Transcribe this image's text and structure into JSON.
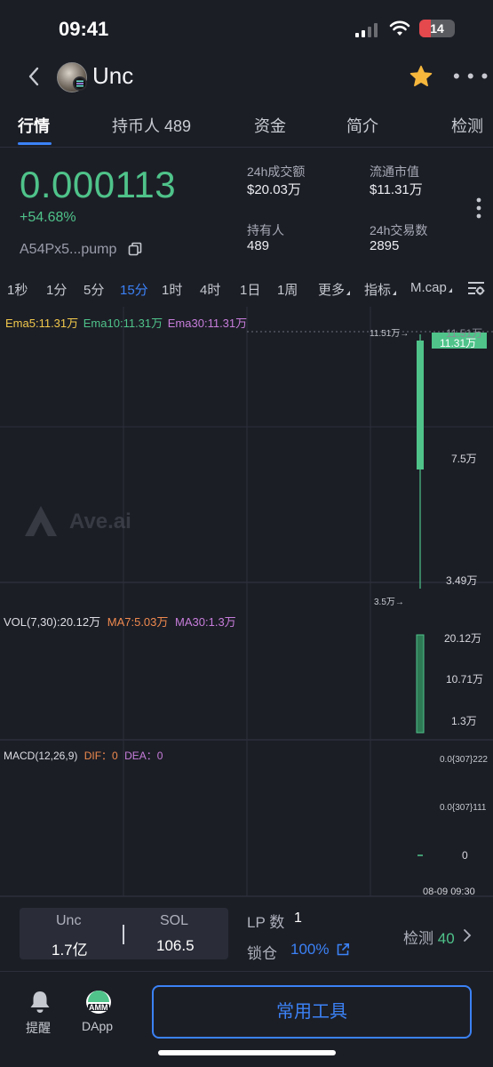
{
  "status_bar": {
    "time": "09:41",
    "battery": "14"
  },
  "header": {
    "title": "Unc"
  },
  "tabs": [
    {
      "label": "行情"
    },
    {
      "label": "持币人 489"
    },
    {
      "label": "资金"
    },
    {
      "label": "简介"
    },
    {
      "label": "检测"
    }
  ],
  "price": {
    "value": "0.000113",
    "change": "+54.68%",
    "address": "A54Px5...pump"
  },
  "stats": [
    {
      "label": "24h成交额",
      "value": "$20.03万"
    },
    {
      "label": "流通市值",
      "value": "$11.31万"
    },
    {
      "label": "持有人",
      "value": "489"
    },
    {
      "label": "24h交易数",
      "value": "2895"
    }
  ],
  "timeframes": [
    {
      "label": "1秒"
    },
    {
      "label": "1分"
    },
    {
      "label": "5分"
    },
    {
      "label": "15分"
    },
    {
      "label": "1时"
    },
    {
      "label": "4时"
    },
    {
      "label": "1日"
    },
    {
      "label": "1周"
    },
    {
      "label": "更多"
    },
    {
      "label": "指标"
    },
    {
      "label": "M.cap"
    }
  ],
  "chart": {
    "ema": {
      "ema5": "Ema5:11.31万",
      "ema10": "Ema10:11.31万",
      "ema30": "Ema30:11.31万"
    },
    "price_axis": {
      "top": "11.51万",
      "current": "11.31万",
      "mid": "7.5万",
      "low": "3.49万"
    },
    "markers": {
      "high": "11.51万→",
      "low": "3.5万→"
    },
    "vol": {
      "label": "VOL(7,30):20.12万",
      "ma7": "MA7:5.03万",
      "ma30": "MA30:1.3万"
    },
    "vol_axis": {
      "top": "20.12万",
      "mid": "10.71万",
      "low": "1.3万"
    },
    "macd": {
      "label": "MACD(12,26,9)",
      "dif": "DIF：0",
      "dea": "DEA：0"
    },
    "macd_axis": {
      "top": "0.0{307}222",
      "mid": "0.0{307}111",
      "zero": "0"
    },
    "date": "08-09 09:30",
    "watermark": "Ave.ai",
    "colors": {
      "up": "#4fc38a",
      "ema5": "#f1c84b",
      "ema10": "#4fc38a",
      "ema30": "#c77ddb",
      "vol": "#dddee4",
      "ma7": "#ef8a4e",
      "ma30": "#c77ddb",
      "dif": "#ef8a4e",
      "dea": "#c77ddb"
    }
  },
  "liquidity": {
    "token_name": "Unc",
    "token_amount": "1.7亿",
    "base_name": "SOL",
    "base_amount": "106.5",
    "lp_label": "LP 数",
    "lp_value": "1",
    "lock_label": "锁仓",
    "lock_value": "100%",
    "detect_label": "检测",
    "detect_value": "40"
  },
  "bottom_nav": {
    "alert_label": "提醒",
    "dapp_label": "DApp",
    "dapp_badge": "AMM",
    "tools_button": "常用工具"
  }
}
